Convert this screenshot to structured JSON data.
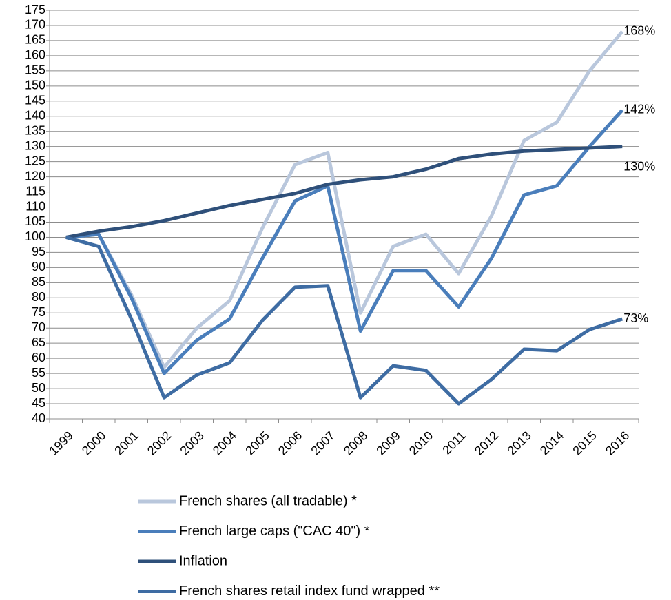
{
  "chart_data": {
    "type": "line",
    "categories": [
      "1999",
      "2000",
      "2001",
      "2002",
      "2003",
      "2004",
      "2005",
      "2006",
      "2007",
      "2008",
      "2009",
      "2010",
      "2011",
      "2012",
      "2013",
      "2014",
      "2015",
      "2016"
    ],
    "series": [
      {
        "name": "French shares (all tradable) *",
        "color": "#b9c7dc",
        "values": [
          100,
          101,
          81,
          57,
          70,
          79,
          103,
          124,
          128,
          75,
          97,
          101,
          88,
          107,
          132,
          138,
          155,
          168
        ],
        "value_labels": [
          null,
          null,
          null,
          null,
          null,
          null,
          null,
          null,
          null,
          null,
          null,
          null,
          null,
          null,
          null,
          null,
          null,
          "168%"
        ]
      },
      {
        "name": "French large caps (\"CAC 40\") *",
        "color": "#4a7ebb",
        "values": [
          100,
          101,
          80,
          55,
          66,
          73,
          93,
          112,
          117,
          69,
          89,
          89,
          77,
          93,
          114,
          117,
          130,
          142
        ],
        "value_labels": [
          null,
          null,
          null,
          null,
          null,
          null,
          null,
          null,
          null,
          null,
          null,
          null,
          null,
          null,
          null,
          null,
          null,
          "142%"
        ]
      },
      {
        "name": "Inflation",
        "color": "#2f507a",
        "values": [
          100,
          102,
          103.5,
          105.5,
          108,
          110.5,
          112.5,
          114.5,
          117.5,
          119,
          120,
          122.5,
          126,
          127.5,
          128.5,
          129,
          129.5,
          130
        ],
        "value_labels": [
          null,
          null,
          null,
          null,
          null,
          null,
          null,
          null,
          null,
          null,
          null,
          null,
          null,
          null,
          null,
          null,
          null,
          "130%"
        ]
      },
      {
        "name": "French shares retail index fund wrapped **",
        "color": "#3e6ca3",
        "values": [
          100,
          97,
          73,
          47,
          54.5,
          58.5,
          72.5,
          83.5,
          84,
          47,
          57.5,
          56,
          45,
          53,
          63,
          62.5,
          69.5,
          73
        ],
        "value_labels": [
          null,
          null,
          null,
          null,
          null,
          null,
          null,
          null,
          null,
          null,
          null,
          null,
          null,
          null,
          null,
          null,
          null,
          "73%"
        ]
      }
    ],
    "ylim": [
      40,
      175
    ],
    "yticks": [
      40,
      45,
      50,
      55,
      60,
      65,
      70,
      75,
      80,
      85,
      90,
      95,
      100,
      105,
      110,
      115,
      120,
      125,
      130,
      135,
      140,
      145,
      150,
      155,
      160,
      165,
      170,
      175
    ],
    "grid": true
  }
}
